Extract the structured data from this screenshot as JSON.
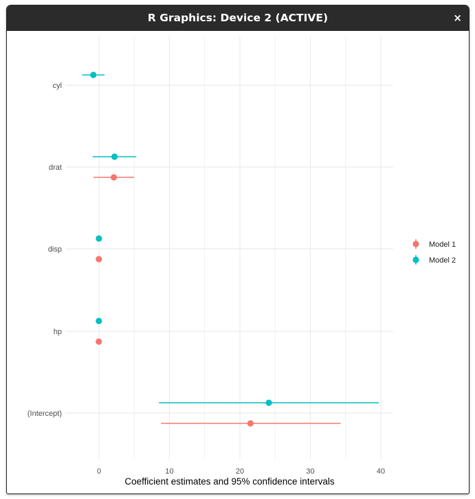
{
  "window": {
    "title": "R Graphics: Device 2 (ACTIVE)",
    "close_glyph": "×"
  },
  "colors": {
    "model1": "#F8766D",
    "model2": "#00BFC4",
    "grid": "#EBEBEB",
    "titlebar": "#2B2B2B"
  },
  "chart_data": {
    "type": "scatter",
    "subtype": "coefficient plot with horizontal 95% confidence intervals",
    "title": "",
    "xlabel": "Coefficient estimates and 95% confidence intervals",
    "ylabel": "",
    "xlim": [
      -5,
      42
    ],
    "x_ticks": [
      0,
      10,
      20,
      30,
      40
    ],
    "x_tick_labels": [
      "0",
      "10",
      "20",
      "30",
      "40"
    ],
    "grid": true,
    "legend_position": "right",
    "categories": [
      "cyl",
      "drat",
      "disp",
      "hp",
      "(Intercept)"
    ],
    "series": [
      {
        "name": "Model 1",
        "color": "#F8766D",
        "points": [
          {
            "term": "drat",
            "estimate": 2.1,
            "low": -0.8,
            "high": 5.0
          },
          {
            "term": "disp",
            "estimate": -0.02,
            "low": -0.05,
            "high": 0.01
          },
          {
            "term": "hp",
            "estimate": -0.03,
            "low": -0.06,
            "high": 0.0
          },
          {
            "term": "(Intercept)",
            "estimate": 21.5,
            "low": 8.8,
            "high": 34.3
          }
        ]
      },
      {
        "name": "Model 2",
        "color": "#00BFC4",
        "points": [
          {
            "term": "cyl",
            "estimate": -0.8,
            "low": -2.4,
            "high": 0.8
          },
          {
            "term": "drat",
            "estimate": 2.2,
            "low": -0.9,
            "high": 5.3
          },
          {
            "term": "disp",
            "estimate": -0.01,
            "low": -0.04,
            "high": 0.02
          },
          {
            "term": "hp",
            "estimate": -0.02,
            "low": -0.05,
            "high": 0.01
          },
          {
            "term": "(Intercept)",
            "estimate": 24.1,
            "low": 8.5,
            "high": 39.7
          }
        ]
      }
    ]
  }
}
